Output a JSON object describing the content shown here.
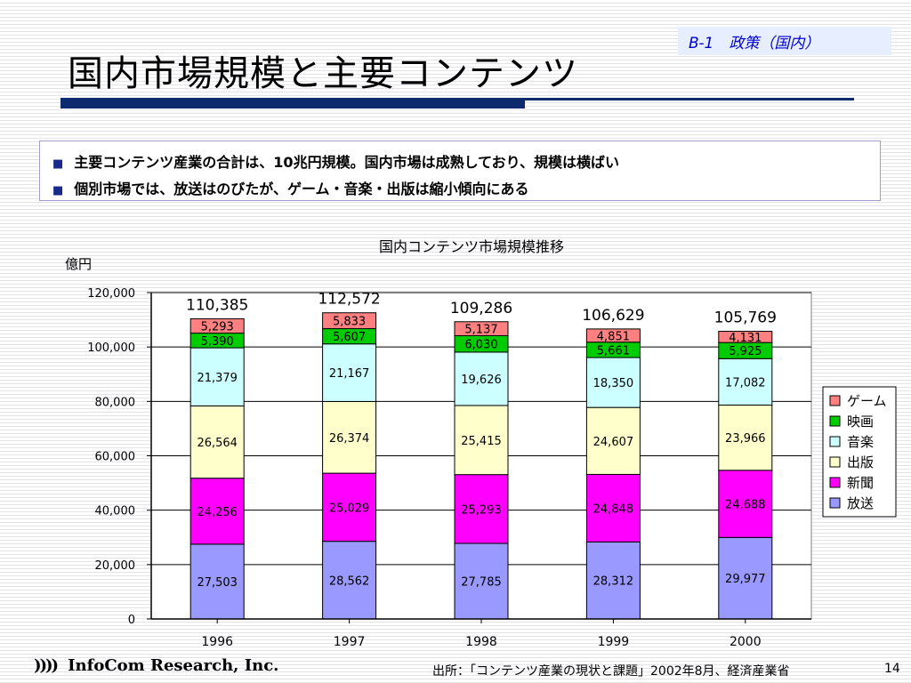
{
  "slide": {
    "section_tag": "B-1　政策（国内）",
    "title": "国内市場規模と主要コンテンツ",
    "bullets": [
      "主要コンテンツ産業の合計は、10兆円規模。国内市場は成熟しており、規模は横ばい",
      "個別市場では、放送はのびたが、ゲーム・音楽・出版は縮小傾向にある"
    ],
    "bullet_marker": "■",
    "footer": {
      "logo_mark": "))))",
      "company": "InfoCom Research, Inc.",
      "source": "出所：「コンテンツ産業の現状と課題」2002年8月、経済産業省",
      "page_number": "14"
    }
  },
  "chart_data": {
    "type": "bar",
    "stacked": true,
    "title": "国内コンテンツ市場規模推移",
    "ylabel": "億円",
    "xlabel": "",
    "categories": [
      "1996",
      "1997",
      "1998",
      "1999",
      "2000"
    ],
    "ylim": [
      0,
      120000
    ],
    "ytick_labels": [
      "0",
      "20,000",
      "40,000",
      "60,000",
      "80,000",
      "100,000",
      "120,000"
    ],
    "yticks": [
      0,
      20000,
      40000,
      60000,
      80000,
      100000,
      120000
    ],
    "totals": [
      110385,
      112572,
      109286,
      106629,
      105769
    ],
    "total_labels": [
      "110,385",
      "112,572",
      "109,286",
      "106,629",
      "105,769"
    ],
    "legend_position": "right",
    "grid": true,
    "series": [
      {
        "name": "放送",
        "color": "#9999ff",
        "values": [
          27503,
          28562,
          27785,
          28312,
          29977
        ],
        "labels": [
          "27,503",
          "28,562",
          "27,785",
          "28,312",
          "29,977"
        ]
      },
      {
        "name": "新聞",
        "color": "#ff00ff",
        "values": [
          24256,
          25029,
          25293,
          24848,
          24688
        ],
        "labels": [
          "24,256",
          "25,029",
          "25,293",
          "24,848",
          "24,688"
        ]
      },
      {
        "name": "出版",
        "color": "#ffffcc",
        "values": [
          26564,
          26374,
          25415,
          24607,
          23966
        ],
        "labels": [
          "26,564",
          "26,374",
          "25,415",
          "24,607",
          "23,966"
        ]
      },
      {
        "name": "音楽",
        "color": "#ccffff",
        "values": [
          21379,
          21167,
          19626,
          18350,
          17082
        ],
        "labels": [
          "21,379",
          "21,167",
          "19,626",
          "18,350",
          "17,082"
        ]
      },
      {
        "name": "映画",
        "color": "#00cc00",
        "values": [
          5390,
          5607,
          6030,
          5661,
          5925
        ],
        "labels": [
          "5,390",
          "5,607",
          "6,030",
          "5,661",
          "5,925"
        ]
      },
      {
        "name": "ゲーム",
        "color": "#ff8080",
        "values": [
          5293,
          5833,
          5137,
          4851,
          4131
        ],
        "labels": [
          "5,293",
          "5,833",
          "5,137",
          "4,851",
          "4,131"
        ]
      }
    ]
  }
}
